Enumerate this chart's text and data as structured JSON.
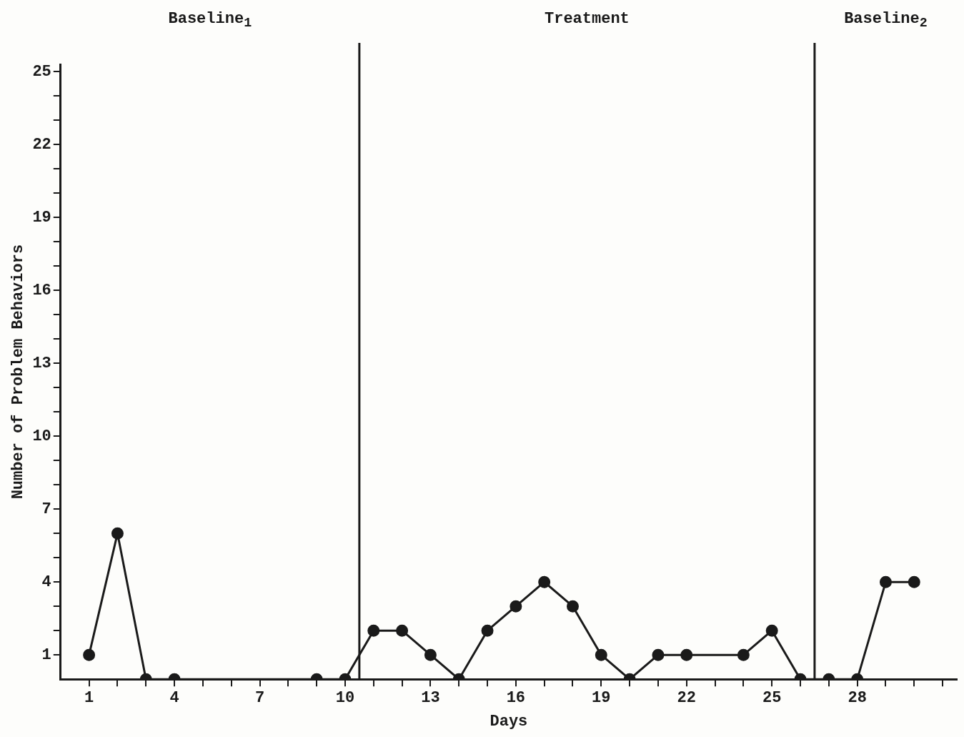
{
  "chart_data": {
    "type": "line",
    "xlabel": "Days",
    "ylabel": "Number of Problem Behaviors",
    "x": [
      1,
      2,
      3,
      4,
      5,
      6,
      7,
      8,
      9,
      10,
      11,
      12,
      13,
      14,
      15,
      16,
      17,
      18,
      19,
      20,
      21,
      22,
      23,
      24,
      25,
      26,
      27,
      28,
      29,
      30
    ],
    "series": [
      {
        "color": "#1a1a1a",
        "values": [
          1,
          6,
          0,
          0,
          null,
          null,
          null,
          null,
          0,
          0,
          2,
          2,
          1,
          0,
          2,
          3,
          4,
          3,
          1,
          0,
          1,
          1,
          null,
          1,
          2,
          0,
          0,
          0,
          4,
          4
        ]
      }
    ],
    "xlim": [
      0,
      31.5
    ],
    "ylim": [
      0,
      25.3
    ],
    "xticks": [
      1,
      {
        "value": 2,
        "label": null
      },
      {
        "value": 3,
        "label": null
      },
      4,
      {
        "value": 5,
        "label": null
      },
      {
        "value": 6,
        "label": null
      },
      7,
      {
        "value": 8,
        "label": null
      },
      {
        "value": 9,
        "label": null
      },
      10,
      {
        "value": 11,
        "label": null
      },
      {
        "value": 12,
        "label": null
      },
      13,
      {
        "value": 14,
        "label": null
      },
      {
        "value": 15,
        "label": null
      },
      16,
      {
        "value": 17,
        "label": null
      },
      {
        "value": 18,
        "label": null
      },
      19,
      {
        "value": 20,
        "label": null
      },
      {
        "value": 21,
        "label": null
      },
      22,
      {
        "value": 23,
        "label": null
      },
      {
        "value": 24,
        "label": null
      },
      25,
      {
        "value": 26,
        "label": null
      },
      {
        "value": 27,
        "label": null
      },
      28,
      {
        "value": 29,
        "label": null
      },
      {
        "value": 30,
        "label": null
      },
      {
        "value": 31,
        "label": null
      }
    ],
    "yticks": [
      1,
      {
        "value": 2,
        "label": null
      },
      {
        "value": 3,
        "label": null
      },
      4,
      {
        "value": 5,
        "label": null
      },
      {
        "value": 6,
        "label": null
      },
      7,
      {
        "value": 8,
        "label": null
      },
      {
        "value": 9,
        "label": null
      },
      10,
      {
        "value": 11,
        "label": null
      },
      {
        "value": 12,
        "label": null
      },
      13,
      {
        "value": 14,
        "label": null
      },
      {
        "value": 15,
        "label": null
      },
      16,
      {
        "value": 17,
        "label": null
      },
      {
        "value": 18,
        "label": null
      },
      19,
      {
        "value": 20,
        "label": null
      },
      {
        "value": 21,
        "label": null
      },
      22,
      {
        "value": 23,
        "label": null
      },
      {
        "value": 24,
        "label": null
      },
      25
    ],
    "ref_lines": [
      {
        "axis": "x",
        "value": 10.5,
        "color": "#1a1a1a"
      },
      {
        "axis": "x",
        "value": 26.5,
        "color": "#1a1a1a"
      }
    ],
    "annotations": [
      "Baseline$_{1}$",
      "Treatment",
      "Baseline$_{2}$"
    ],
    "grid": false,
    "legend": false,
    "marker": "circle",
    "line_style": "solid"
  }
}
